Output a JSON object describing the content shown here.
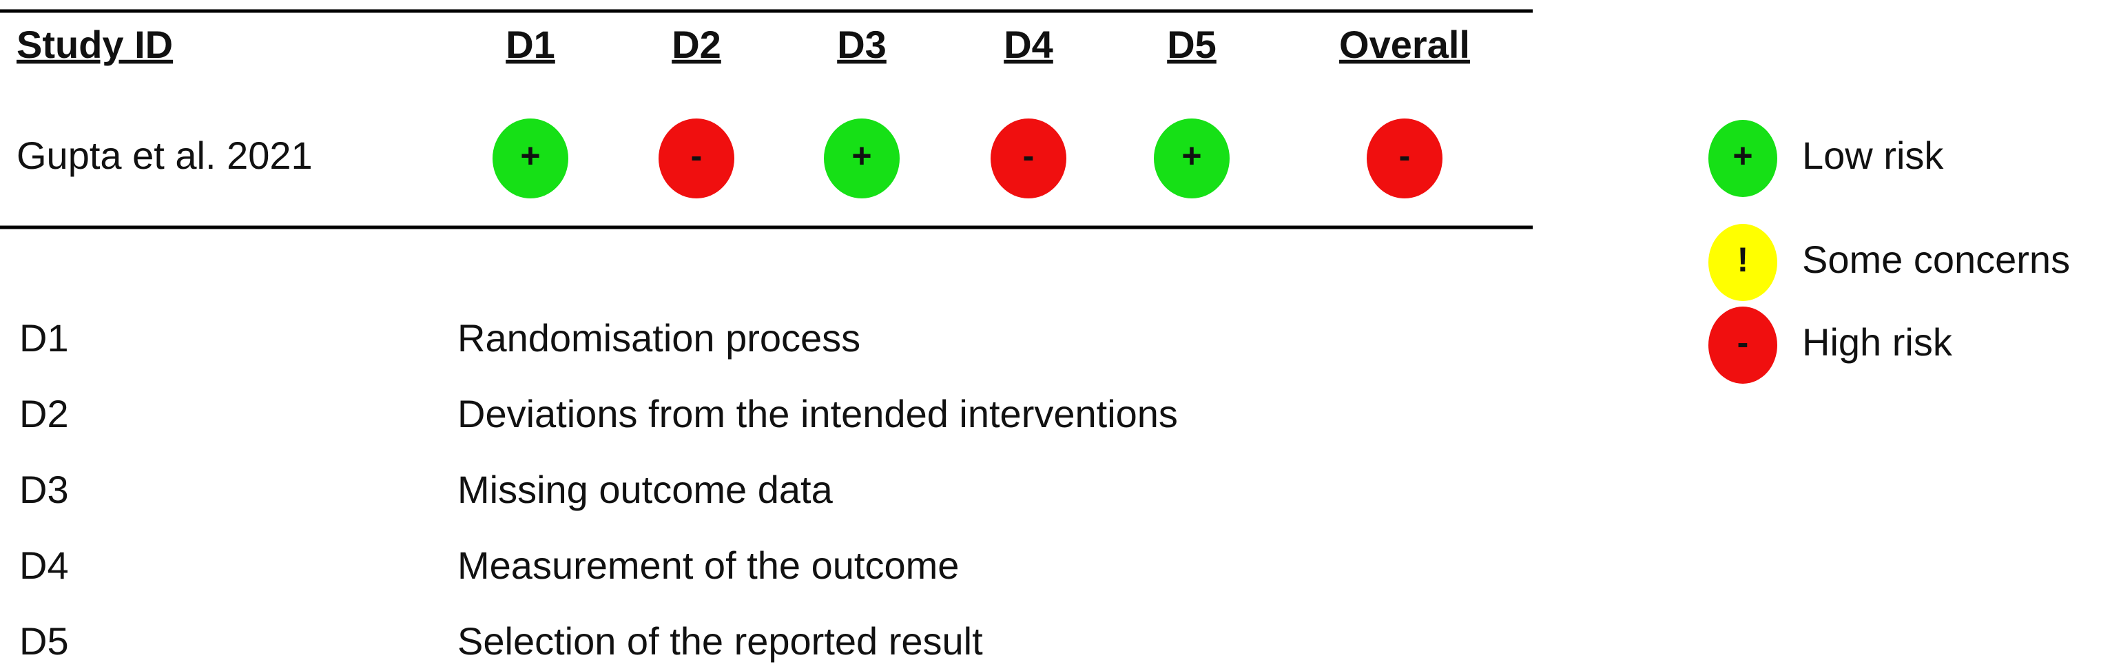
{
  "table": {
    "headers": [
      "Study ID",
      "D1",
      "D2",
      "D3",
      "D4",
      "D5",
      "Overall"
    ],
    "rows": [
      {
        "study": "Gupta et al. 2021",
        "judgements": [
          "+",
          "-",
          "+",
          "-",
          "+",
          "-"
        ]
      }
    ]
  },
  "legend": [
    {
      "symbol": "+",
      "label": "Low risk",
      "color": "#16e016"
    },
    {
      "symbol": "!",
      "label": "Some concerns",
      "color": "#ffff00"
    },
    {
      "symbol": "-",
      "label": "High risk",
      "color": "#f00f0f"
    }
  ],
  "domains": [
    {
      "code": "D1",
      "description": "Randomisation process"
    },
    {
      "code": "D2",
      "description": "Deviations from the intended interventions"
    },
    {
      "code": "D3",
      "description": "Missing outcome data"
    },
    {
      "code": "D4",
      "description": "Measurement of the outcome"
    },
    {
      "code": "D5",
      "description": "Selection of the reported result"
    }
  ]
}
